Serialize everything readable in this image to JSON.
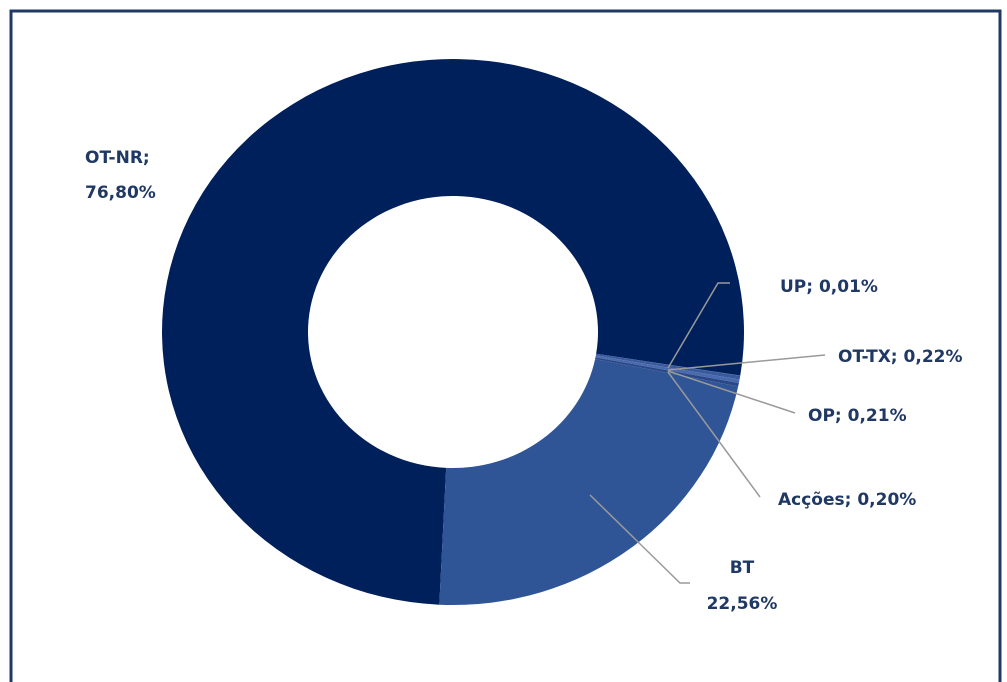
{
  "chart_data": {
    "type": "donut",
    "values": [
      76.8,
      0.01,
      0.22,
      0.21,
      0.2,
      22.56
    ],
    "value_labels": [
      [
        "OT-NR;",
        "76,80%"
      ],
      [
        "UP; 0,01%"
      ],
      [
        "OT-TX; 0,22%"
      ],
      [
        "OP; 0,21%"
      ],
      [
        "Acções; 0,20%"
      ],
      [
        "BT",
        "22,56%"
      ]
    ],
    "colors": [
      "#00205b",
      "#1d3a7a",
      "#3a5a9e",
      "#4a6aae",
      "#2a4888",
      "#2f5597"
    ]
  }
}
